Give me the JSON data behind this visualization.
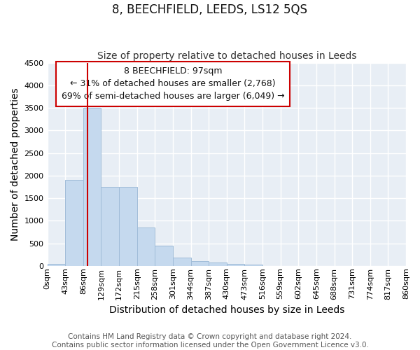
{
  "title": "8, BEECHFIELD, LEEDS, LS12 5QS",
  "subtitle": "Size of property relative to detached houses in Leeds",
  "xlabel": "Distribution of detached houses by size in Leeds",
  "ylabel": "Number of detached properties",
  "bin_edges": [
    0,
    43,
    86,
    129,
    172,
    215,
    258,
    301,
    344,
    387,
    430,
    473,
    516,
    559,
    602,
    645,
    688,
    731,
    774,
    817,
    860
  ],
  "bar_heights": [
    50,
    1900,
    3500,
    1750,
    1750,
    850,
    450,
    180,
    100,
    80,
    50,
    30,
    0,
    0,
    0,
    0,
    0,
    0,
    0,
    0
  ],
  "bar_color": "#c5d9ee",
  "bar_edgecolor": "#a0bcd8",
  "vline_x": 97,
  "vline_color": "#cc0000",
  "ylim": [
    0,
    4500
  ],
  "annotation_text": "8 BEECHFIELD: 97sqm\n← 31% of detached houses are smaller (2,768)\n69% of semi-detached houses are larger (6,049) →",
  "annotation_box_color": "#ffffff",
  "annotation_box_edgecolor": "#cc0000",
  "footer_line1": "Contains HM Land Registry data © Crown copyright and database right 2024.",
  "footer_line2": "Contains public sector information licensed under the Open Government Licence v3.0.",
  "background_color": "#e8eef5",
  "fig_background_color": "#ffffff",
  "grid_color": "#ffffff",
  "title_fontsize": 12,
  "subtitle_fontsize": 10,
  "axis_label_fontsize": 10,
  "tick_fontsize": 8,
  "footer_fontsize": 7.5,
  "annotation_fontsize": 9
}
